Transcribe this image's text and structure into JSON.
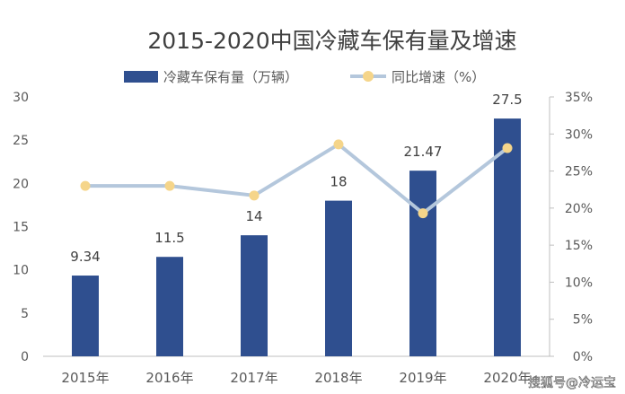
{
  "watermark": "搜狐号@冷运宝",
  "chart_data": {
    "type": "bar",
    "title": "2015-2020中国冷藏车保有量及增速",
    "categories": [
      "2015年",
      "2016年",
      "2017年",
      "2018年",
      "2019年",
      "2020年"
    ],
    "series": [
      {
        "name": "冷藏车保有量（万辆）",
        "type": "bar",
        "axis": "left",
        "color": "#2f4f8f",
        "values": [
          9.34,
          11.5,
          14,
          18,
          21.47,
          27.5
        ],
        "labels": [
          "9.34",
          "11.5",
          "14",
          "18",
          "21.47",
          "27.5"
        ]
      },
      {
        "name": "同比增速（%）",
        "type": "line",
        "axis": "right",
        "color": "#b4c7dc",
        "marker_color": "#f5d58a",
        "values": [
          23,
          23,
          21.7,
          28.6,
          19.3,
          28.1
        ]
      }
    ],
    "y_left": {
      "min": 0,
      "max": 30,
      "ticks": [
        0,
        5,
        10,
        15,
        20,
        25,
        30
      ]
    },
    "y_right": {
      "min": 0,
      "max": 35,
      "ticks": [
        0,
        5,
        10,
        15,
        20,
        25,
        30,
        35
      ],
      "tick_labels": [
        "0%",
        "5%",
        "10%",
        "15%",
        "20%",
        "25%",
        "30%",
        "35%"
      ]
    },
    "legend_position": "top",
    "grid": false
  }
}
